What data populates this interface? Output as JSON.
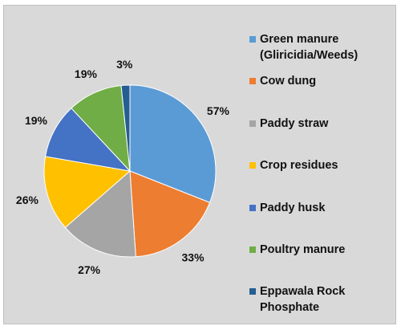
{
  "chart_data": {
    "type": "pie",
    "title": "",
    "slices": [
      {
        "label": "Green manure\n(Gliricidia/Weeds)",
        "value": 57,
        "value_label": "57%",
        "color": "#5b9bd5"
      },
      {
        "label": "Cow dung",
        "value": 33,
        "value_label": "33%",
        "color": "#ed7d31"
      },
      {
        "label": "Paddy straw",
        "value": 27,
        "value_label": "27%",
        "color": "#a5a5a5"
      },
      {
        "label": "Crop residues",
        "value": 26,
        "value_label": "26%",
        "color": "#ffc000"
      },
      {
        "label": "Paddy husk",
        "value": 19,
        "value_label": "19%",
        "color": "#4472c4"
      },
      {
        "label": "Poultry manure",
        "value": 19,
        "value_label": "19%",
        "color": "#70ad47"
      },
      {
        "label": "Eppawala Rock\nPhosphate",
        "value": 3,
        "value_label": "3%",
        "color": "#255e91"
      }
    ],
    "start_angle_deg": 0,
    "direction": "clockwise",
    "legend_position": "right"
  }
}
